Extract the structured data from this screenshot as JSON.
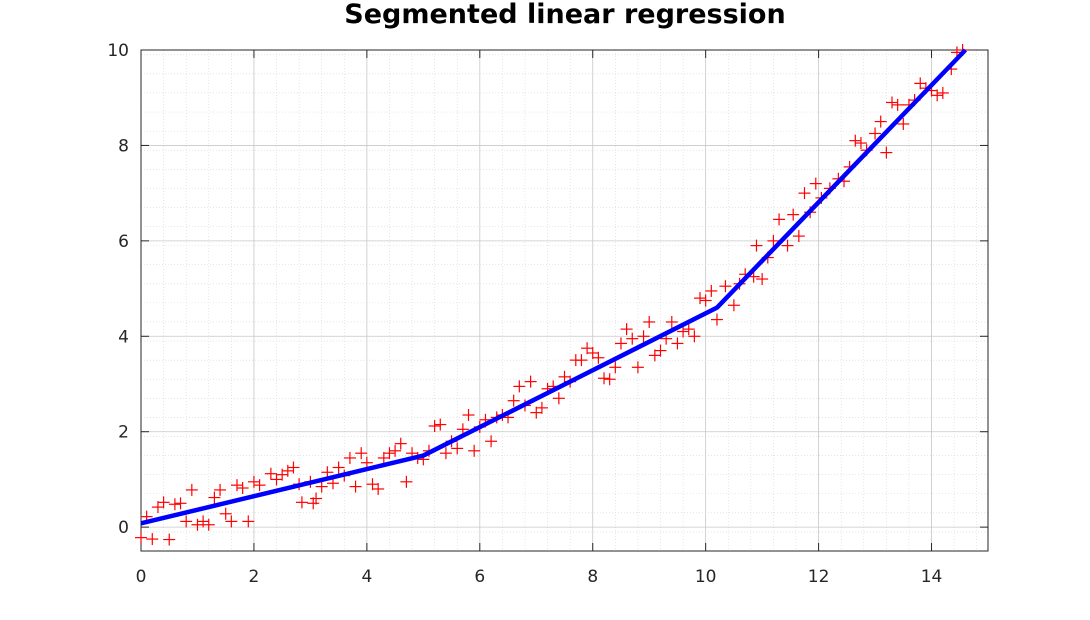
{
  "chart_data": {
    "type": "scatter",
    "title": "Segmented linear regression",
    "xlabel": "",
    "ylabel": "",
    "xlim": [
      0,
      15
    ],
    "ylim": [
      -0.5,
      10
    ],
    "xticks": [
      0,
      2,
      4,
      6,
      8,
      10,
      12,
      14
    ],
    "yticks": [
      0,
      2,
      4,
      6,
      8,
      10
    ],
    "grid": true,
    "minor_grid": true,
    "colors": {
      "points": "#ff0000",
      "fit": "#0000ff"
    },
    "series": [
      {
        "kind": "scatter",
        "marker": "plus",
        "points": [
          [
            0.0,
            -0.22
          ],
          [
            0.1,
            0.22
          ],
          [
            0.2,
            -0.25
          ],
          [
            0.3,
            0.42
          ],
          [
            0.4,
            0.52
          ],
          [
            0.5,
            -0.26
          ],
          [
            0.6,
            0.48
          ],
          [
            0.7,
            0.5
          ],
          [
            0.8,
            0.12
          ],
          [
            0.9,
            0.78
          ],
          [
            1.0,
            0.05
          ],
          [
            1.1,
            0.12
          ],
          [
            1.2,
            0.05
          ],
          [
            1.3,
            0.62
          ],
          [
            1.4,
            0.78
          ],
          [
            1.5,
            0.28
          ],
          [
            1.6,
            0.12
          ],
          [
            1.7,
            0.88
          ],
          [
            1.8,
            0.82
          ],
          [
            1.9,
            0.12
          ],
          [
            2.0,
            0.95
          ],
          [
            2.1,
            0.88
          ],
          [
            2.3,
            1.12
          ],
          [
            2.4,
            1.0
          ],
          [
            2.5,
            1.1
          ],
          [
            2.6,
            1.18
          ],
          [
            2.7,
            1.25
          ],
          [
            2.8,
            0.9
          ],
          [
            2.85,
            0.52
          ],
          [
            3.0,
            0.95
          ],
          [
            3.05,
            0.5
          ],
          [
            3.1,
            0.6
          ],
          [
            3.2,
            0.85
          ],
          [
            3.3,
            1.15
          ],
          [
            3.4,
            0.92
          ],
          [
            3.5,
            1.25
          ],
          [
            3.6,
            1.08
          ],
          [
            3.7,
            1.45
          ],
          [
            3.8,
            0.85
          ],
          [
            3.9,
            1.55
          ],
          [
            4.0,
            1.35
          ],
          [
            4.1,
            0.9
          ],
          [
            4.2,
            0.8
          ],
          [
            4.3,
            1.45
          ],
          [
            4.4,
            1.55
          ],
          [
            4.5,
            1.6
          ],
          [
            4.6,
            1.75
          ],
          [
            4.7,
            0.95
          ],
          [
            4.8,
            1.55
          ],
          [
            4.9,
            1.45
          ],
          [
            5.0,
            1.42
          ],
          [
            5.1,
            1.6
          ],
          [
            5.2,
            2.12
          ],
          [
            5.3,
            2.15
          ],
          [
            5.4,
            1.55
          ],
          [
            5.5,
            1.8
          ],
          [
            5.6,
            1.65
          ],
          [
            5.7,
            2.05
          ],
          [
            5.8,
            2.35
          ],
          [
            5.9,
            1.6
          ],
          [
            6.0,
            2.1
          ],
          [
            6.1,
            2.25
          ],
          [
            6.2,
            1.8
          ],
          [
            6.3,
            2.3
          ],
          [
            6.4,
            2.35
          ],
          [
            6.5,
            2.3
          ],
          [
            6.6,
            2.65
          ],
          [
            6.7,
            2.95
          ],
          [
            6.8,
            2.55
          ],
          [
            6.9,
            3.05
          ],
          [
            7.0,
            2.4
          ],
          [
            7.1,
            2.5
          ],
          [
            7.2,
            2.9
          ],
          [
            7.3,
            2.95
          ],
          [
            7.4,
            2.7
          ],
          [
            7.5,
            3.15
          ],
          [
            7.6,
            3.05
          ],
          [
            7.7,
            3.5
          ],
          [
            7.8,
            3.5
          ],
          [
            7.9,
            3.75
          ],
          [
            8.0,
            3.65
          ],
          [
            8.1,
            3.55
          ],
          [
            8.2,
            3.12
          ],
          [
            8.3,
            3.1
          ],
          [
            8.4,
            3.35
          ],
          [
            8.5,
            3.85
          ],
          [
            8.6,
            4.15
          ],
          [
            8.7,
            3.95
          ],
          [
            8.8,
            3.35
          ],
          [
            8.9,
            4.0
          ],
          [
            9.0,
            4.3
          ],
          [
            9.1,
            3.6
          ],
          [
            9.2,
            3.7
          ],
          [
            9.3,
            3.95
          ],
          [
            9.4,
            4.3
          ],
          [
            9.5,
            3.85
          ],
          [
            9.6,
            4.1
          ],
          [
            9.7,
            4.15
          ],
          [
            9.8,
            4.0
          ],
          [
            9.9,
            4.8
          ],
          [
            10.0,
            4.75
          ],
          [
            10.1,
            4.95
          ],
          [
            10.2,
            4.35
          ],
          [
            10.35,
            5.05
          ],
          [
            10.5,
            4.65
          ],
          [
            10.6,
            5.1
          ],
          [
            10.7,
            5.3
          ],
          [
            10.85,
            5.25
          ],
          [
            10.9,
            5.9
          ],
          [
            11.0,
            5.2
          ],
          [
            11.1,
            5.65
          ],
          [
            11.2,
            6.0
          ],
          [
            11.3,
            6.45
          ],
          [
            11.45,
            5.9
          ],
          [
            11.55,
            6.55
          ],
          [
            11.65,
            6.1
          ],
          [
            11.75,
            7.0
          ],
          [
            11.85,
            6.6
          ],
          [
            11.95,
            7.2
          ],
          [
            12.05,
            6.9
          ],
          [
            12.2,
            7.1
          ],
          [
            12.35,
            7.3
          ],
          [
            12.45,
            7.25
          ],
          [
            12.55,
            7.55
          ],
          [
            12.65,
            8.1
          ],
          [
            12.75,
            8.05
          ],
          [
            12.85,
            7.9
          ],
          [
            13.0,
            8.25
          ],
          [
            13.1,
            8.5
          ],
          [
            13.2,
            7.85
          ],
          [
            13.3,
            8.9
          ],
          [
            13.4,
            8.85
          ],
          [
            13.5,
            8.45
          ],
          [
            13.6,
            8.85
          ],
          [
            13.7,
            8.95
          ],
          [
            13.8,
            9.3
          ],
          [
            13.9,
            9.2
          ],
          [
            14.0,
            9.15
          ],
          [
            14.1,
            9.05
          ],
          [
            14.2,
            9.1
          ],
          [
            14.35,
            9.6
          ],
          [
            14.45,
            9.95
          ],
          [
            14.55,
            10.0
          ]
        ]
      },
      {
        "kind": "line",
        "points": [
          [
            0,
            0.08
          ],
          [
            5.0,
            1.5
          ],
          [
            10.2,
            4.6
          ],
          [
            14.6,
            10.0
          ]
        ]
      }
    ]
  }
}
